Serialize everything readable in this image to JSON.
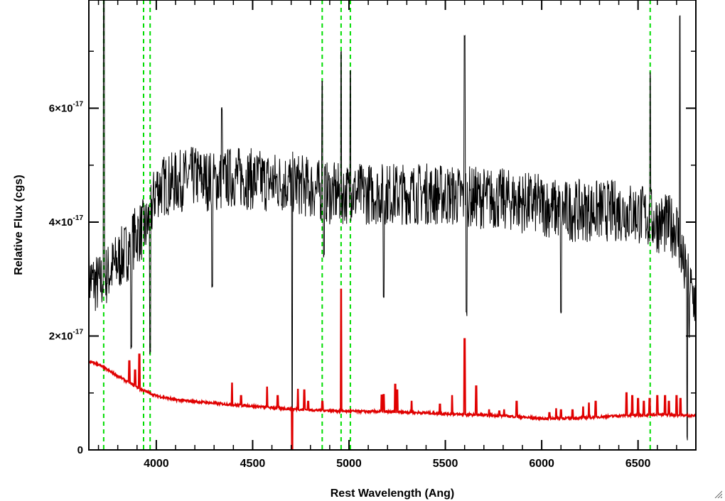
{
  "chart_data": {
    "type": "line",
    "xlabel": "Rest Wavelength (Ang)",
    "ylabel": "Relative Flux (cgs)",
    "xlim": [
      3650,
      6800
    ],
    "ylim": [
      0,
      7.9e-17
    ],
    "x_ticks": [
      4000,
      4500,
      5000,
      5500,
      6000,
      6500
    ],
    "x_tick_labels": [
      "4000",
      "4500",
      "5000",
      "5500",
      "6000",
      "6500"
    ],
    "y_ticks": [
      0,
      2e-17,
      4e-17,
      6e-17
    ],
    "y_tick_labels": [
      {
        "mantissa": "0",
        "exponent": ""
      },
      {
        "mantissa": "2×10",
        "exponent": "-17"
      },
      {
        "mantissa": "4×10",
        "exponent": "-17"
      },
      {
        "mantissa": "6×10",
        "exponent": "-17"
      }
    ],
    "series": [
      {
        "color": "#000000",
        "continuum": [
          [
            3650,
            3e-17
          ],
          [
            3700,
            2.9e-17
          ],
          [
            3750,
            3.1e-17
          ],
          [
            3800,
            3.3e-17
          ],
          [
            3850,
            3.5e-17
          ],
          [
            3900,
            3.8e-17
          ],
          [
            3950,
            3.9e-17
          ],
          [
            3980,
            4.3e-17
          ],
          [
            4000,
            4.6e-17
          ],
          [
            4100,
            4.7e-17
          ],
          [
            4200,
            4.8e-17
          ],
          [
            4300,
            4.7e-17
          ],
          [
            4400,
            4.8e-17
          ],
          [
            4500,
            4.75e-17
          ],
          [
            4600,
            4.7e-17
          ],
          [
            4700,
            4.7e-17
          ],
          [
            4800,
            4.6e-17
          ],
          [
            4900,
            4.5e-17
          ],
          [
            5000,
            4.5e-17
          ],
          [
            5200,
            4.5e-17
          ],
          [
            5400,
            4.5e-17
          ],
          [
            5600,
            4.45e-17
          ],
          [
            5800,
            4.4e-17
          ],
          [
            6000,
            4.3e-17
          ],
          [
            6100,
            4.2e-17
          ],
          [
            6200,
            4.2e-17
          ],
          [
            6400,
            4.2e-17
          ],
          [
            6500,
            4.15e-17
          ],
          [
            6600,
            4e-17
          ],
          [
            6700,
            3.9e-17
          ],
          [
            6750,
            3e-17
          ],
          [
            6800,
            2.6e-17
          ]
        ],
        "features": [
          {
            "x": 3728,
            "y": 8.5e-17
          },
          {
            "x": 3870,
            "y": 1.8e-17
          },
          {
            "x": 3968,
            "y": 1.7e-17
          },
          {
            "x": 4290,
            "y": 2.9e-17
          },
          {
            "x": 4340,
            "y": 6e-17
          },
          {
            "x": 4705,
            "y": 0.0
          },
          {
            "x": 4861,
            "y": 6.5e-17
          },
          {
            "x": 4870,
            "y": 3.4e-17
          },
          {
            "x": 4959,
            "y": 7e-17
          },
          {
            "x": 5007,
            "y": 6.7e-17
          },
          {
            "x": 5180,
            "y": 2.7e-17
          },
          {
            "x": 5600,
            "y": 7.3e-17
          },
          {
            "x": 5610,
            "y": 2.4e-17
          },
          {
            "x": 6100,
            "y": 2.4e-17
          },
          {
            "x": 6563,
            "y": 6.6e-17
          },
          {
            "x": 6717,
            "y": 7.6e-17
          },
          {
            "x": 6755,
            "y": 2e-18
          },
          {
            "x": 6765,
            "y": 2e-17
          }
        ],
        "noise_amplitude": 5.5e-18
      },
      {
        "color": "#e00000",
        "continuum": [
          [
            3650,
            1.55e-17
          ],
          [
            3700,
            1.5e-17
          ],
          [
            3750,
            1.4e-17
          ],
          [
            3800,
            1.3e-17
          ],
          [
            3850,
            1.2e-17
          ],
          [
            3900,
            1.1e-17
          ],
          [
            3950,
            1.02e-17
          ],
          [
            4000,
            9.5e-18
          ],
          [
            4100,
            8.8e-18
          ],
          [
            4200,
            8.5e-18
          ],
          [
            4300,
            8.2e-18
          ],
          [
            4400,
            7.9e-18
          ],
          [
            4500,
            7.7e-18
          ],
          [
            4600,
            7.4e-18
          ],
          [
            4700,
            7.2e-18
          ],
          [
            4800,
            7e-18
          ],
          [
            4900,
            6.9e-18
          ],
          [
            5000,
            6.8e-18
          ],
          [
            5200,
            6.7e-18
          ],
          [
            5400,
            6.5e-18
          ],
          [
            5600,
            6.2e-18
          ],
          [
            5800,
            6e-18
          ],
          [
            6000,
            5.5e-18
          ],
          [
            6200,
            5.6e-18
          ],
          [
            6400,
            6e-18
          ],
          [
            6600,
            6.2e-18
          ],
          [
            6800,
            6e-18
          ]
        ],
        "lines": [
          {
            "x": 3860,
            "y": 1.56e-17
          },
          {
            "x": 3890,
            "y": 1.4e-17
          },
          {
            "x": 3912,
            "y": 1.68e-17
          },
          {
            "x": 4393,
            "y": 1.17e-17
          },
          {
            "x": 4440,
            "y": 9.5e-18
          },
          {
            "x": 4575,
            "y": 1.1e-17
          },
          {
            "x": 4630,
            "y": 9.5e-18
          },
          {
            "x": 4705,
            "y": -9e-18
          },
          {
            "x": 4735,
            "y": 1.06e-17
          },
          {
            "x": 4768,
            "y": 1.05e-17
          },
          {
            "x": 4788,
            "y": 8.5e-18
          },
          {
            "x": 4862,
            "y": 8.5e-18
          },
          {
            "x": 4959,
            "y": 2.82e-17
          },
          {
            "x": 5170,
            "y": 9.6e-18
          },
          {
            "x": 5180,
            "y": 9.7e-18
          },
          {
            "x": 5240,
            "y": 1.15e-17
          },
          {
            "x": 5250,
            "y": 1.05e-17
          },
          {
            "x": 5325,
            "y": 8.5e-18
          },
          {
            "x": 5472,
            "y": 8e-18
          },
          {
            "x": 5535,
            "y": 9.5e-18
          },
          {
            "x": 5600,
            "y": 1.95e-17
          },
          {
            "x": 5660,
            "y": 1.12e-17
          },
          {
            "x": 5727,
            "y": 7e-18
          },
          {
            "x": 5780,
            "y": 6.8e-18
          },
          {
            "x": 5805,
            "y": 7e-18
          },
          {
            "x": 5870,
            "y": 8.5e-18
          },
          {
            "x": 6040,
            "y": 6.5e-18
          },
          {
            "x": 6075,
            "y": 7.2e-18
          },
          {
            "x": 6100,
            "y": 7e-18
          },
          {
            "x": 6160,
            "y": 7e-18
          },
          {
            "x": 6215,
            "y": 7.5e-18
          },
          {
            "x": 6245,
            "y": 8.2e-18
          },
          {
            "x": 6280,
            "y": 8.5e-18
          },
          {
            "x": 6440,
            "y": 1e-17
          },
          {
            "x": 6470,
            "y": 9.5e-18
          },
          {
            "x": 6500,
            "y": 9e-18
          },
          {
            "x": 6530,
            "y": 8.5e-18
          },
          {
            "x": 6560,
            "y": 9e-18
          },
          {
            "x": 6600,
            "y": 9.5e-18
          },
          {
            "x": 6640,
            "y": 9.5e-18
          },
          {
            "x": 6660,
            "y": 8.5e-18
          },
          {
            "x": 6700,
            "y": 9.5e-18
          },
          {
            "x": 6720,
            "y": 9e-18
          }
        ]
      }
    ],
    "reference_lines": {
      "color": "#00dd00",
      "style": "dashed",
      "x": [
        3727,
        3934,
        3968,
        4861,
        4959,
        5007,
        6563
      ]
    },
    "grid": false,
    "legend": "none"
  }
}
